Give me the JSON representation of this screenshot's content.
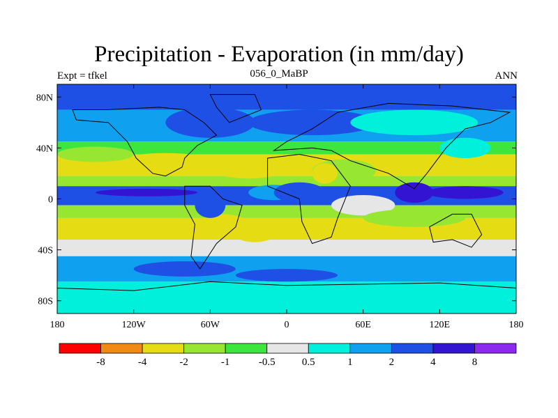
{
  "chart_data": {
    "type": "heatmap",
    "title": "Precipitation - Evaporation (in mm/day)",
    "left_string": "Expt = tfkel",
    "center_string": "056_0_MaBP",
    "right_string": "ANN",
    "x_ticks": [
      "180",
      "120W",
      "60W",
      "0",
      "60E",
      "120E",
      "180"
    ],
    "x_tick_values": [
      -180,
      -120,
      -60,
      0,
      60,
      120,
      180
    ],
    "y_ticks": [
      "80N",
      "40N",
      "0",
      "40S",
      "80S"
    ],
    "y_tick_values": [
      80,
      40,
      0,
      -40,
      -80
    ],
    "xlim": [
      -180,
      180
    ],
    "ylim": [
      -90,
      90
    ],
    "colorbar": {
      "levels": [
        "-8",
        "-4",
        "-2",
        "-1",
        "-0.5",
        "0.5",
        "1",
        "2",
        "4",
        "8"
      ],
      "colors": [
        "#ff0000",
        "#f08a14",
        "#e6dc14",
        "#96e632",
        "#3ce63c",
        "#e6e6e6",
        "#00f0dc",
        "#0fa0f0",
        "#1e50e6",
        "#3214d2",
        "#8c28f0"
      ]
    },
    "zonal_pattern": [
      {
        "lat": [
          70,
          90
        ],
        "value": 3
      },
      {
        "lat": [
          45,
          70
        ],
        "value": 1.5
      },
      {
        "lat": [
          35,
          45
        ],
        "value": -0.7
      },
      {
        "lat": [
          18,
          35
        ],
        "value": -4
      },
      {
        "lat": [
          10,
          18
        ],
        "value": -1.5
      },
      {
        "lat": [
          -5,
          10
        ],
        "value": 3
      },
      {
        "lat": [
          -15,
          -5
        ],
        "value": -1.5
      },
      {
        "lat": [
          -32,
          -15
        ],
        "value": -4
      },
      {
        "lat": [
          -45,
          -32
        ],
        "value": 0
      },
      {
        "lat": [
          -65,
          -45
        ],
        "value": 1.5
      },
      {
        "lat": [
          -90,
          -65
        ],
        "value": 0.7
      }
    ]
  }
}
